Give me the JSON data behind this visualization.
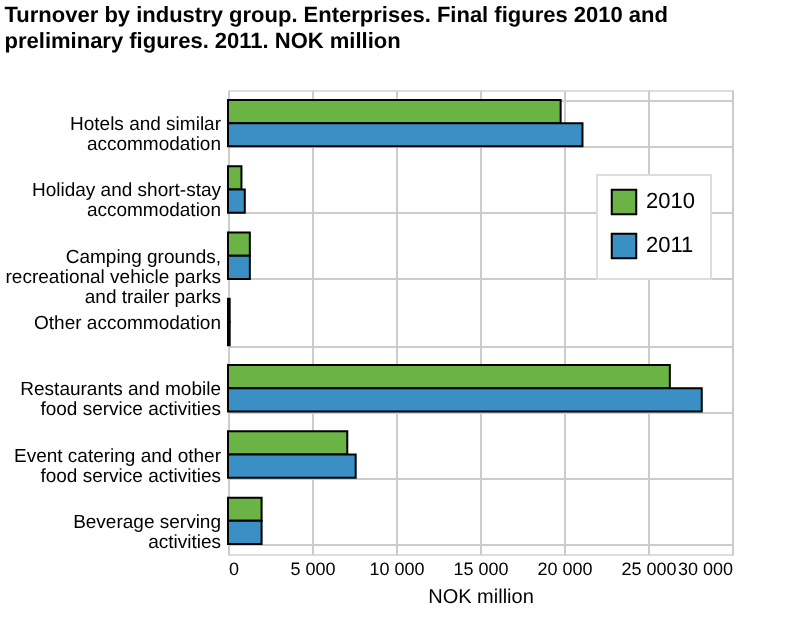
{
  "chart_data": {
    "type": "bar",
    "orientation": "horizontal",
    "title": "Turnover by industry group. Enterprises. Final figures 2010 and preliminary figures. 2011. NOK million",
    "xlabel": "NOK million",
    "categories": [
      "Hotels and similar accommodation",
      "Holiday and short-stay accommodation",
      "Camping grounds, recreational vehicle parks and trailer parks",
      "Other accommodation",
      "Restaurants and mobile food service activities",
      "Event catering and other food service activities",
      "Beverage serving activities"
    ],
    "series": [
      {
        "name": "2010",
        "color": "#6ab344",
        "values": [
          19800,
          800,
          1300,
          100,
          26300,
          7100,
          2000
        ]
      },
      {
        "name": "2011",
        "color": "#3a8fc5",
        "values": [
          21100,
          1000,
          1300,
          100,
          28200,
          7600,
          2000
        ]
      }
    ],
    "xlim": [
      0,
      30000
    ],
    "xticks": [
      0,
      {
        "value": 5000,
        "label": "5 000"
      },
      {
        "value": 10000,
        "label": "10 000"
      },
      {
        "value": 15000,
        "label": "15 000"
      },
      {
        "value": 20000,
        "label": "20 000"
      },
      {
        "value": 25000,
        "label": "25 000"
      },
      {
        "value": 30000,
        "label": "30 000"
      }
    ],
    "grid": true,
    "legend": "right"
  }
}
